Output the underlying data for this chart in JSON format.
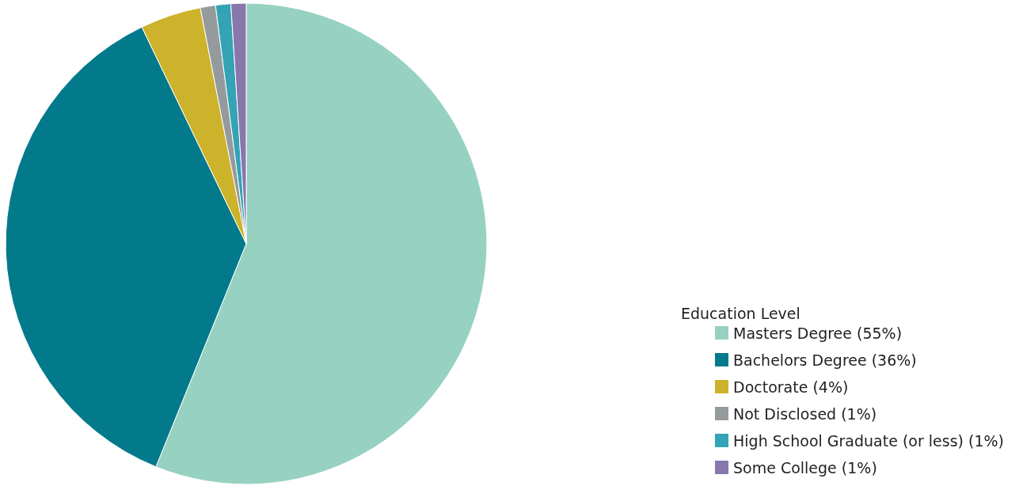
{
  "chart_data": {
    "type": "pie",
    "legend_title": "Education Level",
    "categories": [
      "Masters Degree (55%)",
      "Bachelors Degree (36%)",
      "Doctorate (4%)",
      "Not Disclosed (1%)",
      "High School Graduate (or less) (1%)",
      "Some College (1%)"
    ],
    "values": [
      55,
      36,
      4,
      1,
      1,
      1
    ],
    "colors": [
      "#96d1c1",
      "#037a8b",
      "#cdb22b",
      "#959b9c",
      "#33a3b5",
      "#8777ad"
    ],
    "legend": "bottom right"
  }
}
